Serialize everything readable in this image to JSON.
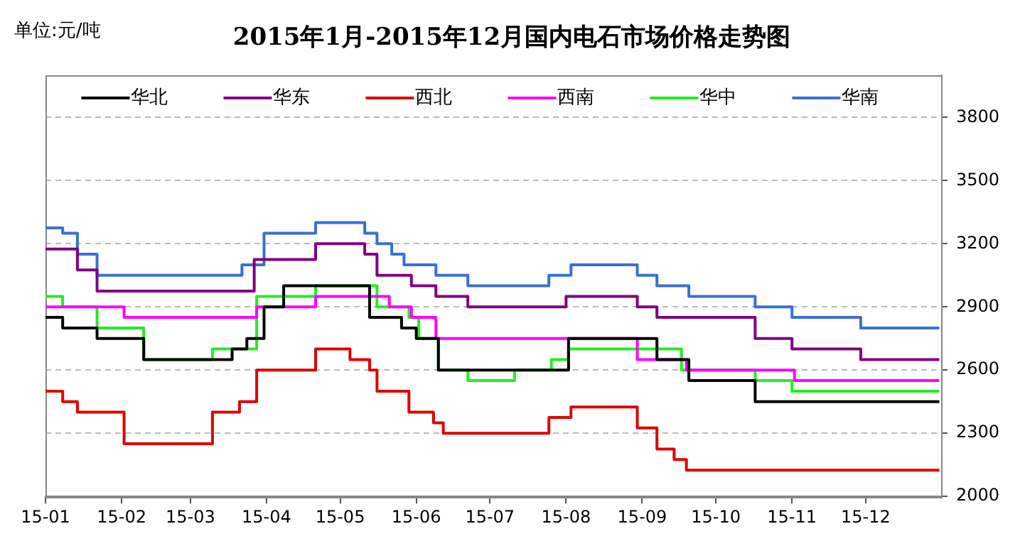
{
  "chart_data": {
    "type": "step",
    "title": "2015年1月-2015年12月国内电石市场价格走势图",
    "annotations": [
      "单位:元/吨"
    ],
    "xlim": [
      "2015-01-01",
      "2016-01-01"
    ],
    "xticks": [
      {
        "value": "2015-01-01",
        "label": "15-01"
      },
      {
        "value": "2015-02-01",
        "label": "15-02"
      },
      {
        "value": "2015-03-01",
        "label": "15-03"
      },
      {
        "value": "2015-04-01",
        "label": "15-04"
      },
      {
        "value": "2015-05-01",
        "label": "15-05"
      },
      {
        "value": "2015-06-01",
        "label": "15-06"
      },
      {
        "value": "2015-07-01",
        "label": "15-07"
      },
      {
        "value": "2015-08-01",
        "label": "15-08"
      },
      {
        "value": "2015-09-01",
        "label": "15-09"
      },
      {
        "value": "2015-10-01",
        "label": "15-10"
      },
      {
        "value": "2015-11-01",
        "label": "15-11"
      },
      {
        "value": "2015-12-01",
        "label": "15-12"
      }
    ],
    "ylim": [
      2000,
      4000
    ],
    "yticks": [
      2000,
      2300,
      2600,
      2900,
      3200,
      3500,
      3800
    ],
    "grid": "y",
    "legend": "top",
    "series": [
      {
        "name": "华北",
        "color": "#000000",
        "x": [
          "2015-01-01",
          "2015-01-08",
          "2015-01-22",
          "2015-02-10",
          "2015-03-18",
          "2015-03-24",
          "2015-03-31",
          "2015-04-08",
          "2015-05-13",
          "2015-05-26",
          "2015-06-01",
          "2015-06-10",
          "2015-08-02",
          "2015-09-07",
          "2015-09-20",
          "2015-10-17",
          "2015-12-31"
        ],
        "values": [
          2850,
          2800,
          2750,
          2650,
          2700,
          2750,
          2900,
          3000,
          2850,
          2800,
          2750,
          2600,
          2750,
          2650,
          2550,
          2450,
          2450
        ]
      },
      {
        "name": "华东",
        "color": "#800080",
        "x": [
          "2015-01-01",
          "2015-01-14",
          "2015-01-22",
          "2015-03-27",
          "2015-04-21",
          "2015-05-11",
          "2015-05-16",
          "2015-05-30",
          "2015-06-09",
          "2015-06-22",
          "2015-08-01",
          "2015-08-30",
          "2015-09-07",
          "2015-10-17",
          "2015-11-01",
          "2015-11-29",
          "2015-12-31"
        ],
        "values": [
          3175,
          3075,
          2975,
          3125,
          3200,
          3150,
          3050,
          3000,
          2950,
          2900,
          2950,
          2900,
          2850,
          2750,
          2700,
          2650,
          2650
        ]
      },
      {
        "name": "西北",
        "color": "#e00000",
        "x": [
          "2015-01-01",
          "2015-01-08",
          "2015-01-14",
          "2015-02-02",
          "2015-03-10",
          "2015-03-21",
          "2015-03-28",
          "2015-04-21",
          "2015-05-05",
          "2015-05-13",
          "2015-05-16",
          "2015-05-29",
          "2015-06-08",
          "2015-06-12",
          "2015-07-25",
          "2015-08-03",
          "2015-08-30",
          "2015-09-07",
          "2015-09-14",
          "2015-09-19",
          "2015-12-31"
        ],
        "values": [
          2500,
          2450,
          2400,
          2250,
          2400,
          2450,
          2600,
          2700,
          2650,
          2600,
          2500,
          2400,
          2350,
          2300,
          2375,
          2425,
          2325,
          2225,
          2175,
          2125,
          2125
        ]
      },
      {
        "name": "西南",
        "color": "#ff00ff",
        "x": [
          "2015-01-01",
          "2015-02-02",
          "2015-03-28",
          "2015-04-21",
          "2015-05-21",
          "2015-05-30",
          "2015-06-09",
          "2015-08-30",
          "2015-09-19",
          "2015-11-02",
          "2015-12-31"
        ],
        "values": [
          2900,
          2850,
          2900,
          2950,
          2900,
          2850,
          2750,
          2650,
          2600,
          2550,
          2550
        ]
      },
      {
        "name": "华中",
        "color": "#22ee22",
        "x": [
          "2015-01-01",
          "2015-01-08",
          "2015-01-22",
          "2015-02-10",
          "2015-03-10",
          "2015-03-28",
          "2015-04-21",
          "2015-05-16",
          "2015-05-29",
          "2015-06-02",
          "2015-06-10",
          "2015-06-22",
          "2015-07-11",
          "2015-07-26",
          "2015-08-02",
          "2015-09-17",
          "2015-10-17",
          "2015-11-01",
          "2015-12-31"
        ],
        "values": [
          2950,
          2900,
          2800,
          2650,
          2700,
          2950,
          3000,
          2900,
          2850,
          2750,
          2600,
          2550,
          2600,
          2650,
          2700,
          2600,
          2550,
          2500,
          2500
        ]
      },
      {
        "name": "华南",
        "color": "#3b6fd6",
        "x": [
          "2015-01-01",
          "2015-01-08",
          "2015-01-14",
          "2015-01-22",
          "2015-03-22",
          "2015-03-31",
          "2015-04-21",
          "2015-05-11",
          "2015-05-16",
          "2015-05-22",
          "2015-05-27",
          "2015-06-09",
          "2015-06-22",
          "2015-07-25",
          "2015-08-03",
          "2015-08-30",
          "2015-09-07",
          "2015-09-20",
          "2015-10-17",
          "2015-11-01",
          "2015-11-29",
          "2015-12-31"
        ],
        "values": [
          3275,
          3250,
          3150,
          3050,
          3100,
          3250,
          3300,
          3250,
          3200,
          3150,
          3100,
          3050,
          3000,
          3050,
          3100,
          3050,
          3000,
          2950,
          2900,
          2850,
          2800,
          2800
        ]
      }
    ]
  }
}
